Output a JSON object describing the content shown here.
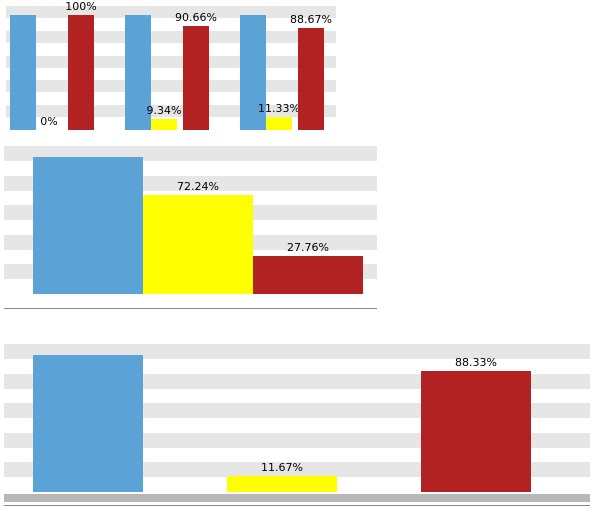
{
  "colors": {
    "blue": "#5ba3d6",
    "yellow": "#ffff00",
    "red": "#b22222",
    "band": "#e6e6e6"
  },
  "chart_data": [
    {
      "type": "bar",
      "categories": [
        "",
        "",
        ""
      ],
      "series": [
        {
          "color": "#5ba3d6",
          "values": [
            100,
            100,
            100
          ],
          "labels": [
            "",
            "",
            ""
          ]
        },
        {
          "color": "#ffff00",
          "values": [
            0,
            9.34,
            11.33
          ],
          "labels": [
            "0%",
            "9.34%",
            "11.33%"
          ]
        },
        {
          "color": "#b22222",
          "values": [
            100,
            90.66,
            88.67
          ],
          "labels": [
            "100%",
            "90.66%",
            "88.67%"
          ]
        }
      ],
      "ylim": [
        0,
        100
      ],
      "grid": true
    },
    {
      "type": "bar",
      "categories": [
        "",
        "",
        ""
      ],
      "values": [
        100,
        72.24,
        27.76
      ],
      "colors": [
        "#5ba3d6",
        "#ffff00",
        "#b22222"
      ],
      "labels": [
        "",
        "72.24%",
        "27.76%"
      ],
      "ylim": [
        0,
        100
      ],
      "grid": true
    },
    {
      "type": "bar",
      "categories": [
        "",
        "",
        ""
      ],
      "values": [
        100,
        11.67,
        88.33
      ],
      "colors": [
        "#5ba3d6",
        "#ffff00",
        "#b22222"
      ],
      "labels": [
        "",
        "11.67%",
        "88.33%"
      ],
      "ylim": [
        0,
        100
      ],
      "grid": true
    }
  ]
}
